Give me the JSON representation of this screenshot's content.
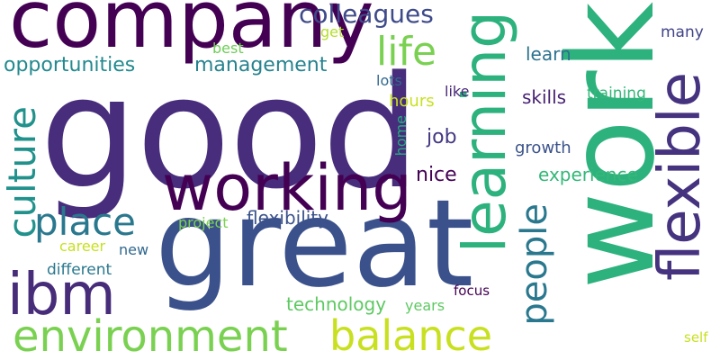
{
  "words": {
    "good": {
      "text": "good",
      "color": "#472d7b"
    },
    "work": {
      "text": "work",
      "color": "#2db27d"
    },
    "great": {
      "text": "great",
      "color": "#3b518b"
    },
    "company": {
      "text": "company",
      "color": "#440154"
    },
    "working": {
      "text": "working",
      "color": "#440154"
    },
    "learning": {
      "text": "learning",
      "color": "#2db27d"
    },
    "flexible": {
      "text": "flexible",
      "color": "#46337f"
    },
    "ibm": {
      "text": "ibm",
      "color": "#472c7a"
    },
    "environment": {
      "text": "environment",
      "color": "#7ad151"
    },
    "balance": {
      "text": "balance",
      "color": "#c8e020"
    },
    "culture": {
      "text": "culture",
      "color": "#21918c"
    },
    "place": {
      "text": "place",
      "color": "#2a788e"
    },
    "life": {
      "text": "life",
      "color": "#7ad151"
    },
    "people": {
      "text": "people",
      "color": "#2a788e"
    },
    "colleagues": {
      "text": "colleagues",
      "color": "#3e4a89"
    },
    "opportunities": {
      "text": "opportunities",
      "color": "#23898e"
    },
    "management": {
      "text": "management",
      "color": "#26828e"
    },
    "flexibility": {
      "text": "flexibility",
      "color": "#3b528b"
    },
    "technology": {
      "text": "technology",
      "color": "#5ec962"
    },
    "experience": {
      "text": "experience",
      "color": "#35b779"
    },
    "learn": {
      "text": "learn",
      "color": "#2c728e"
    },
    "skills": {
      "text": "skills",
      "color": "#482173"
    },
    "training": {
      "text": "training",
      "color": "#35b779"
    },
    "job": {
      "text": "job",
      "color": "#443983"
    },
    "nice": {
      "text": "nice",
      "color": "#440154"
    },
    "hours": {
      "text": "hours",
      "color": "#c8e020"
    },
    "lots": {
      "text": "lots",
      "color": "#31688e"
    },
    "like": {
      "text": "like",
      "color": "#482878"
    },
    "home": {
      "text": "home",
      "color": "#26ad81"
    },
    "growth": {
      "text": "growth",
      "color": "#3b528b"
    },
    "many": {
      "text": "many",
      "color": "#414487"
    },
    "best": {
      "text": "best",
      "color": "#6ece58"
    },
    "get": {
      "text": "get",
      "color": "#b5de2b"
    },
    "project": {
      "text": "project",
      "color": "#7ad151"
    },
    "career": {
      "text": "career",
      "color": "#c8e020"
    },
    "new": {
      "text": "new",
      "color": "#31688e"
    },
    "different": {
      "text": "different",
      "color": "#2a788e"
    },
    "years": {
      "text": "years",
      "color": "#5ec962"
    },
    "focus": {
      "text": "focus",
      "color": "#440154"
    },
    "self": {
      "text": "self",
      "color": "#c8e020"
    }
  }
}
